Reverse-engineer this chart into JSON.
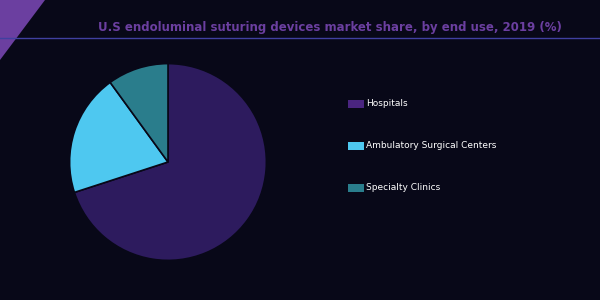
{
  "title": "U.S endoluminal suturing devices market share, by end use, 2019 (%)",
  "slices": [
    70.0,
    20.0,
    10.0
  ],
  "colors": [
    "#2d1b5e",
    "#4ec8f0",
    "#2a7d8c"
  ],
  "legend_labels": [
    "Hospitals",
    "Ambulatory Surgical Centers",
    "Specialty Clinics"
  ],
  "legend_colors": [
    "#4a2580",
    "#4ec8f0",
    "#2a7d8c"
  ],
  "background_color": "#080818",
  "title_color": "#6b3fa0",
  "startangle": 90,
  "wedge_edge_color": "#080818",
  "line_color": "#4040a0",
  "triangle_color": "#6b3fa0"
}
